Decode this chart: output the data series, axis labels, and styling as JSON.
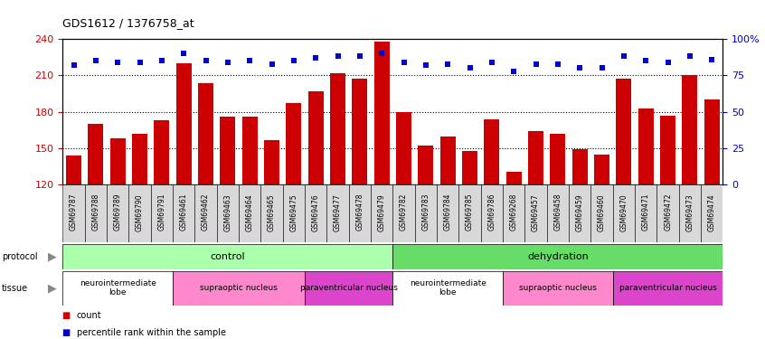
{
  "title": "GDS1612 / 1376758_at",
  "samples": [
    "GSM69787",
    "GSM69788",
    "GSM69789",
    "GSM69790",
    "GSM69791",
    "GSM69461",
    "GSM69462",
    "GSM69463",
    "GSM69464",
    "GSM69465",
    "GSM69475",
    "GSM69476",
    "GSM69477",
    "GSM69478",
    "GSM69479",
    "GSM69782",
    "GSM69783",
    "GSM69784",
    "GSM69785",
    "GSM69786",
    "GSM69268",
    "GSM69457",
    "GSM69458",
    "GSM69459",
    "GSM69460",
    "GSM69470",
    "GSM69471",
    "GSM69472",
    "GSM69473",
    "GSM69474"
  ],
  "counts": [
    144,
    170,
    158,
    162,
    173,
    220,
    204,
    176,
    176,
    157,
    187,
    197,
    212,
    207,
    238,
    180,
    152,
    160,
    148,
    174,
    131,
    164,
    162,
    149,
    145,
    207,
    183,
    177,
    210,
    190
  ],
  "percentile_ranks": [
    82,
    85,
    84,
    84,
    85,
    90,
    85,
    84,
    85,
    83,
    85,
    87,
    88,
    88,
    90,
    84,
    82,
    83,
    80,
    84,
    78,
    83,
    83,
    80,
    80,
    88,
    85,
    84,
    88,
    86
  ],
  "ylim_left": [
    120,
    240
  ],
  "ylim_right": [
    0,
    100
  ],
  "yticks_left": [
    120,
    150,
    180,
    210,
    240
  ],
  "yticks_right": [
    0,
    25,
    50,
    75,
    100
  ],
  "bar_color": "#cc0000",
  "dot_color": "#0000cc",
  "protocol_groups": [
    {
      "label": "control",
      "start": 0,
      "end": 14,
      "color": "#aaffaa"
    },
    {
      "label": "dehydration",
      "start": 15,
      "end": 29,
      "color": "#66dd66"
    }
  ],
  "tissue_groups": [
    {
      "label": "neurointermediate\nlobe",
      "start": 0,
      "end": 4,
      "color": "#ffffff"
    },
    {
      "label": "supraoptic nucleus",
      "start": 5,
      "end": 10,
      "color": "#ff88cc"
    },
    {
      "label": "paraventricular nucleus",
      "start": 11,
      "end": 14,
      "color": "#dd44cc"
    },
    {
      "label": "neurointermediate\nlobe",
      "start": 15,
      "end": 19,
      "color": "#ffffff"
    },
    {
      "label": "supraoptic nucleus",
      "start": 20,
      "end": 24,
      "color": "#ff88cc"
    },
    {
      "label": "paraventricular nucleus",
      "start": 25,
      "end": 29,
      "color": "#dd44cc"
    }
  ]
}
